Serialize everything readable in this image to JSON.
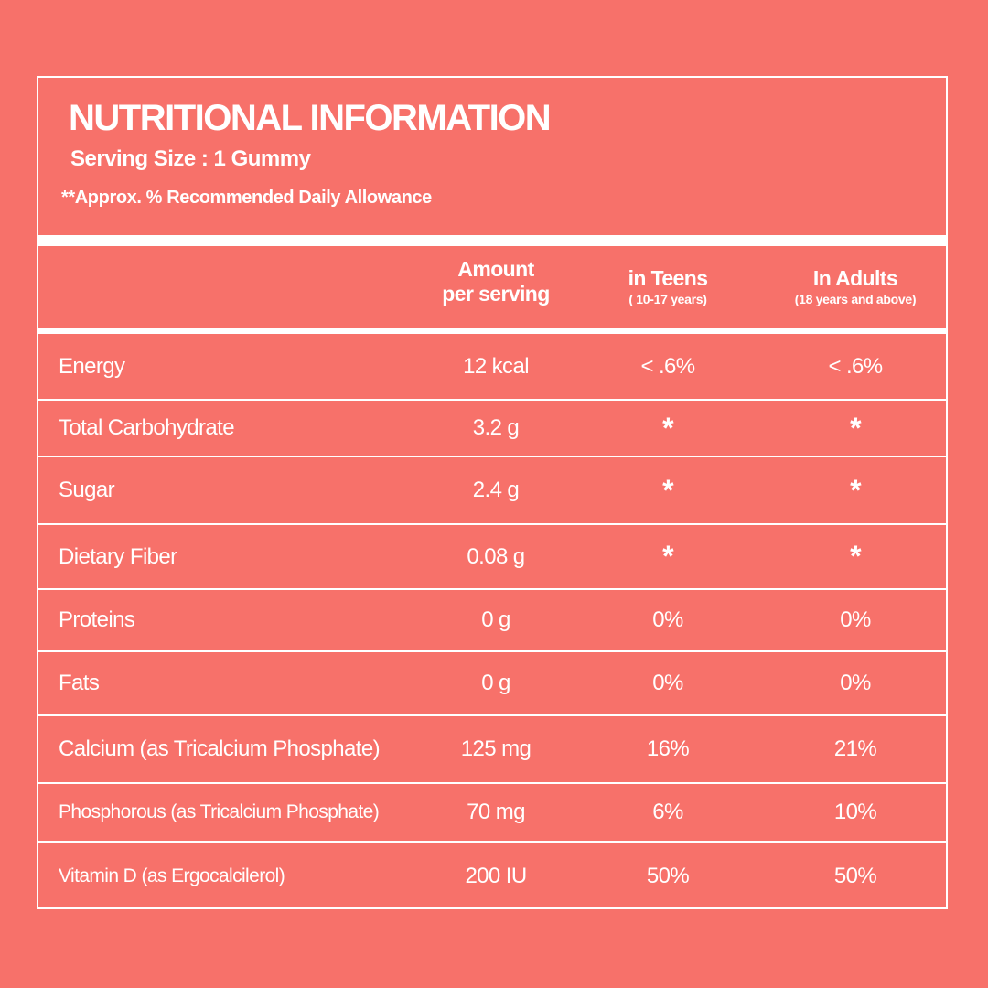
{
  "header": {
    "title": "NUTRITIONAL INFORMATION",
    "serving_size": "Serving Size : 1 Gummy",
    "rda_note": "**Approx. % Recommended Daily Allowance"
  },
  "columns": {
    "amount_line1": "Amount",
    "amount_line2": "per serving",
    "teens": "in Teens",
    "teens_sub": "( 10-17 years)",
    "adults": "In Adults",
    "adults_sub": "(18 years and above)"
  },
  "rows": [
    {
      "name": "Energy",
      "amount": "12 kcal",
      "teens": "< .6%",
      "adults": "< .6%"
    },
    {
      "name": "Total Carbohydrate",
      "amount": "3.2 g",
      "teens": "*",
      "adults": "*"
    },
    {
      "name": "Sugar",
      "amount": "2.4 g",
      "teens": "*",
      "adults": "*"
    },
    {
      "name": "Dietary Fiber",
      "amount": "0.08 g",
      "teens": "*",
      "adults": "*"
    },
    {
      "name": "Proteins",
      "amount": "0 g",
      "teens": "0%",
      "adults": "0%"
    },
    {
      "name": "Fats",
      "amount": "0 g",
      "teens": "0%",
      "adults": "0%"
    },
    {
      "name": "Calcium (as Tricalcium Phosphate)",
      "amount": "125 mg",
      "teens": "16%",
      "adults": "21%"
    },
    {
      "name": "Phosphorous (as Tricalcium Phosphate)",
      "amount": "70 mg",
      "teens": "6%",
      "adults": "10%"
    },
    {
      "name": "Vitamin D (as Ergocalcilerol)",
      "amount": "200 IU",
      "teens": "50%",
      "adults": "50%"
    }
  ],
  "colors": {
    "background": "#f7716a",
    "text": "#ffffff",
    "lines": "#ffffff"
  }
}
